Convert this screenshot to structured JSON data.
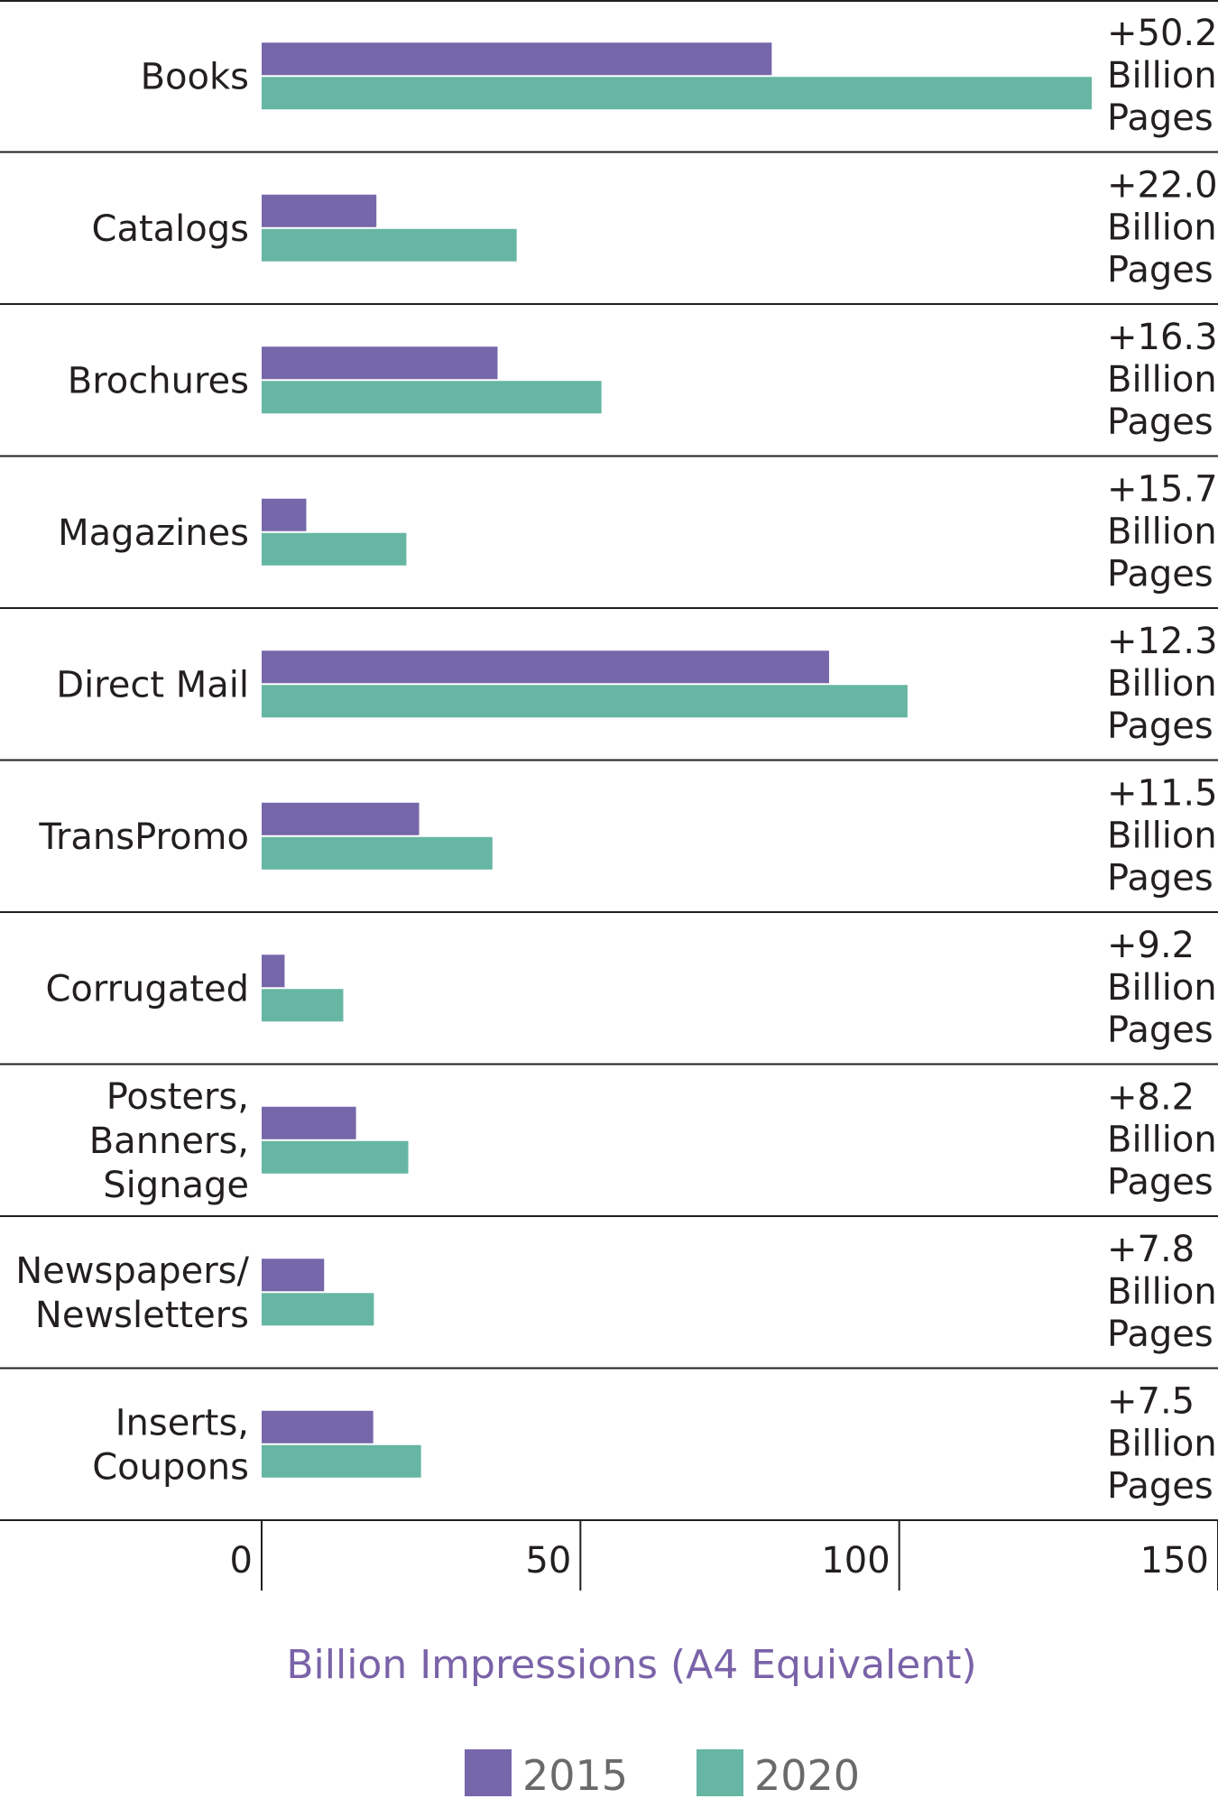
{
  "chart_data": {
    "type": "bar",
    "orientation": "horizontal",
    "categories": [
      [
        "Books"
      ],
      [
        "Catalogs"
      ],
      [
        "Brochures"
      ],
      [
        "Magazines"
      ],
      [
        "Direct Mail"
      ],
      [
        "TransPromo"
      ],
      [
        "Corrugated"
      ],
      [
        "Posters,",
        "Banners,",
        "Signage"
      ],
      [
        "Newspapers/",
        "Newsletters"
      ],
      [
        "Inserts,",
        "Coupons"
      ]
    ],
    "series": [
      {
        "name": "2015",
        "color": "#7666aa",
        "values": [
          80,
          18,
          37,
          7,
          89,
          24.7,
          3.6,
          14.8,
          9.8,
          17.5
        ]
      },
      {
        "name": "2020",
        "color": "#66b6a3",
        "values": [
          130.2,
          40,
          53.3,
          22.7,
          101.3,
          36.2,
          12.8,
          23,
          17.6,
          25
        ]
      }
    ],
    "annotations": [
      [
        "+50.2",
        "Billion",
        "Pages"
      ],
      [
        "+22.0",
        "Billion",
        "Pages"
      ],
      [
        "+16.3",
        "Billion",
        "Pages"
      ],
      [
        "+15.7",
        "Billion",
        "Pages"
      ],
      [
        "+12.3",
        "Billion",
        "Pages"
      ],
      [
        "+11.5",
        "Billion",
        "Pages"
      ],
      [
        "+9.2",
        "Billion",
        "Pages"
      ],
      [
        "+8.2",
        "Billion",
        "Pages"
      ],
      [
        "+7.8",
        "Billion",
        "Pages"
      ],
      [
        "+7.5",
        "Billion",
        "Pages"
      ]
    ],
    "xlabel": "Billion Impressions (A4 Equivalent)",
    "xticks": [
      0,
      50,
      100,
      150
    ],
    "xlim": [
      0,
      150
    ],
    "grid": false,
    "legend_position": "bottom-center"
  }
}
